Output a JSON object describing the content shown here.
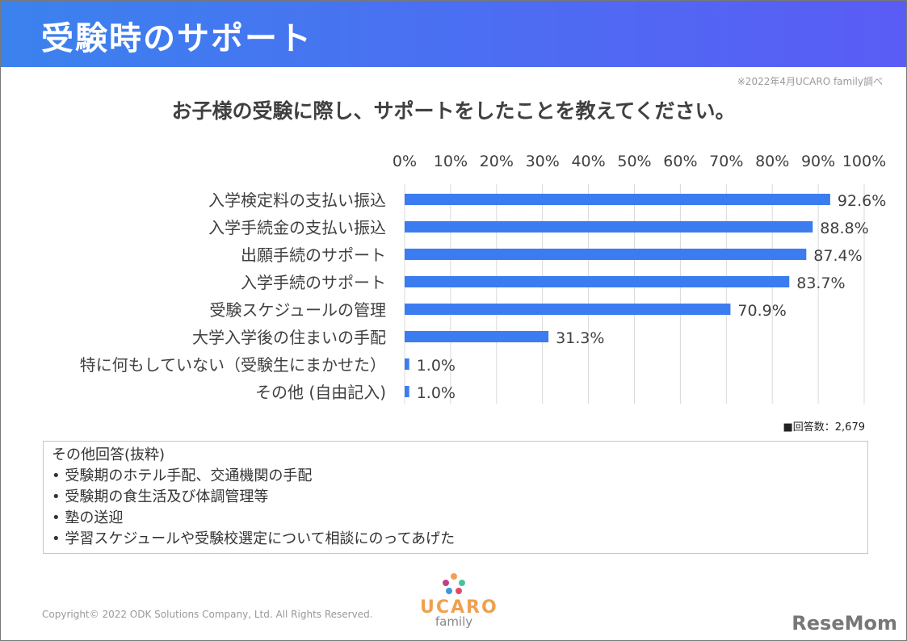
{
  "header": {
    "title": "受験時のサポート"
  },
  "source_note": "※2022年4月UCARO family調べ",
  "respondents": "■回答数：2,679",
  "other_answers": {
    "title": "その他回答(抜粋)",
    "items": [
      "受験期のホテル手配、交通機関の手配",
      "受験期の食生活及び体調管理等",
      "塾の送迎",
      "学習スケジュールや受験校選定について相談にのってあげた"
    ]
  },
  "footer": {
    "copyright": "Copyright© 2022 ODK Solutions Company, Ltd. All Rights Reserved.",
    "logo_text": "UCARO",
    "logo_sub": "family",
    "resemom": "ReseMom"
  },
  "colors": {
    "bar": "#3b7cf0"
  },
  "chart_data": {
    "type": "bar",
    "orientation": "horizontal",
    "title": "お子様の受験に際し、サポートをしたことを教えてください。",
    "categories": [
      "入学検定料の支払い振込",
      "入学手続金の支払い振込",
      "出願手続のサポート",
      "入学手続のサポート",
      "受験スケジュールの管理",
      "大学入学後の住まいの手配",
      "特に何もしていない（受験生にまかせた）",
      "その他 (自由記入)"
    ],
    "values": [
      92.6,
      88.8,
      87.4,
      83.7,
      70.9,
      31.3,
      1.0,
      1.0
    ],
    "data_labels": [
      "92.6%",
      "88.8%",
      "87.4%",
      "83.7%",
      "70.9%",
      "31.3%",
      "1.0%",
      "1.0%"
    ],
    "xlim": [
      0,
      100
    ],
    "ticks": [
      "0%",
      "10%",
      "20%",
      "30%",
      "40%",
      "50%",
      "60%",
      "70%",
      "80%",
      "90%",
      "100%"
    ],
    "grid": true,
    "xlabel": "",
    "ylabel": ""
  }
}
